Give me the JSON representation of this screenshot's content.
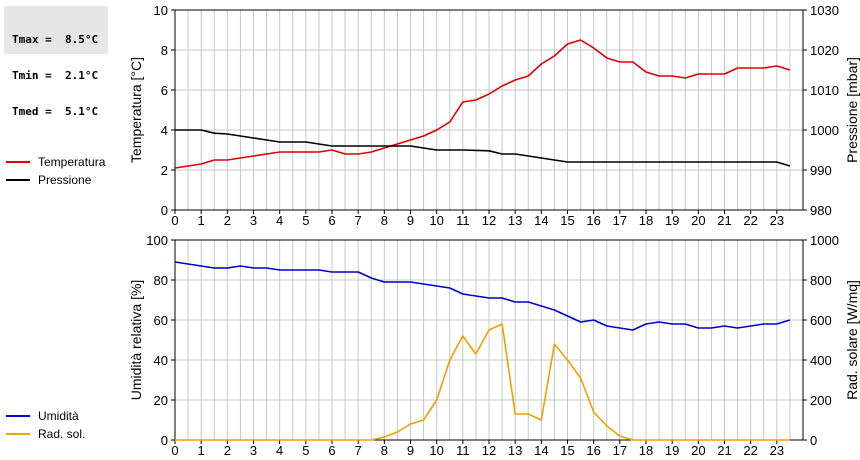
{
  "stats": [
    {
      "label": "Tmax =",
      "value": "8.5°C"
    },
    {
      "label": "Tmin =",
      "value": "2.1°C"
    },
    {
      "label": "Tmed =",
      "value": "5.1°C"
    }
  ],
  "colors": {
    "temperature": "#dd0000",
    "pressure": "#000000",
    "humidity": "#0000cc",
    "radiation": "#f0a000",
    "grid": "#c8c8c8"
  },
  "chart_data": [
    {
      "type": "line",
      "x_ticks": [
        "0",
        "1",
        "2",
        "3",
        "4",
        "5",
        "6",
        "7",
        "8",
        "9",
        "10",
        "11",
        "12",
        "13",
        "14",
        "15",
        "16",
        "17",
        "18",
        "19",
        "20",
        "21",
        "22",
        "23"
      ],
      "xlim": [
        0,
        24
      ],
      "ylabel_left": "Temperatura [°C]",
      "ylabel_right": "Pressione [mbar]",
      "ylim_left": [
        0,
        10
      ],
      "yticks_left": [
        "0",
        "2",
        "4",
        "6",
        "8",
        "10"
      ],
      "ylim_right": [
        980,
        1030
      ],
      "yticks_right": [
        "980",
        "990",
        "1000",
        "1010",
        "1020",
        "1030"
      ],
      "grid": true,
      "legend": [
        "Temperatura",
        "Pressione"
      ],
      "series": [
        {
          "name": "Temperatura",
          "axis": "left",
          "x": [
            0,
            0.5,
            1,
            1.5,
            2,
            2.5,
            3,
            3.5,
            4,
            4.5,
            5,
            5.5,
            6,
            6.5,
            7,
            7.5,
            8,
            8.5,
            9,
            9.5,
            10,
            10.5,
            11,
            11.5,
            12,
            12.5,
            13,
            13.5,
            14,
            14.5,
            15,
            15.5,
            16,
            16.5,
            17,
            17.5,
            18,
            18.5,
            19,
            19.5,
            20,
            20.5,
            21,
            21.5,
            22,
            22.5,
            23,
            23.5
          ],
          "y": [
            2.1,
            2.2,
            2.3,
            2.5,
            2.5,
            2.6,
            2.7,
            2.8,
            2.9,
            2.9,
            2.9,
            2.9,
            3.0,
            2.8,
            2.8,
            2.9,
            3.1,
            3.3,
            3.5,
            3.7,
            4.0,
            4.4,
            5.4,
            5.5,
            5.8,
            6.2,
            6.5,
            6.7,
            7.3,
            7.7,
            8.3,
            8.5,
            8.1,
            7.6,
            7.4,
            7.4,
            6.9,
            6.7,
            6.7,
            6.6,
            6.8,
            6.8,
            6.8,
            7.1,
            7.1,
            7.1,
            7.2,
            7.0
          ]
        },
        {
          "name": "Pressione",
          "axis": "right",
          "x": [
            0,
            1,
            1.5,
            2,
            2.5,
            3,
            3.5,
            4,
            5,
            5.5,
            6,
            7,
            8,
            9,
            9.5,
            10,
            11,
            12,
            12.5,
            13,
            13.5,
            14,
            14.5,
            15,
            16,
            17,
            18,
            19,
            20,
            21,
            22,
            23,
            23.5
          ],
          "y": [
            1000.0,
            1000.0,
            999.2,
            999.0,
            998.5,
            998.0,
            997.5,
            997.0,
            997.0,
            996.5,
            996.0,
            996.0,
            996.0,
            996.0,
            995.5,
            995.0,
            995.0,
            994.8,
            994.0,
            994.0,
            993.5,
            993.0,
            992.5,
            992.0,
            992.0,
            992.0,
            992.0,
            992.0,
            992.0,
            992.0,
            992.0,
            992.0,
            991.0
          ]
        }
      ]
    },
    {
      "type": "line",
      "x_ticks": [
        "0",
        "1",
        "2",
        "3",
        "4",
        "5",
        "6",
        "7",
        "8",
        "9",
        "10",
        "11",
        "12",
        "13",
        "14",
        "15",
        "16",
        "17",
        "18",
        "19",
        "20",
        "21",
        "22",
        "23"
      ],
      "xlim": [
        0,
        24
      ],
      "ylabel_left": "Umidità relativa [%]",
      "ylabel_right": "Rad. solare [W/mq]",
      "ylim_left": [
        0,
        100
      ],
      "yticks_left": [
        "0",
        "20",
        "40",
        "60",
        "80",
        "100"
      ],
      "ylim_right": [
        0,
        1000
      ],
      "yticks_right": [
        "0",
        "200",
        "400",
        "600",
        "800",
        "1000"
      ],
      "grid": true,
      "legend": [
        "Umidità",
        "Rad. sol."
      ],
      "series": [
        {
          "name": "Umidità",
          "axis": "left",
          "x": [
            0,
            0.5,
            1,
            1.5,
            2,
            2.5,
            3,
            3.5,
            4,
            4.5,
            5,
            5.5,
            6,
            6.5,
            7,
            7.5,
            8,
            8.5,
            9,
            9.5,
            10,
            10.5,
            11,
            11.5,
            12,
            12.5,
            13,
            13.5,
            14,
            14.5,
            15,
            15.5,
            16,
            16.5,
            17,
            17.5,
            18,
            18.5,
            19,
            19.5,
            20,
            20.5,
            21,
            21.5,
            22,
            22.5,
            23,
            23.5
          ],
          "y": [
            89,
            88,
            87,
            86,
            86,
            87,
            86,
            86,
            85,
            85,
            85,
            85,
            84,
            84,
            84,
            81,
            79,
            79,
            79,
            78,
            77,
            76,
            73,
            72,
            71,
            71,
            69,
            69,
            67,
            65,
            62,
            59,
            60,
            57,
            56,
            55,
            58,
            59,
            58,
            58,
            56,
            56,
            57,
            56,
            57,
            58,
            58,
            60
          ]
        },
        {
          "name": "Rad. sol.",
          "axis": "right",
          "x": [
            0,
            1,
            2,
            3,
            4,
            5,
            6,
            7,
            7.5,
            8,
            8.5,
            9,
            9.5,
            10,
            10.5,
            11,
            11.5,
            12,
            12.5,
            13,
            13.5,
            14,
            14.5,
            15,
            15.5,
            16,
            16.5,
            17,
            17.5,
            18,
            19,
            20,
            21,
            22,
            23,
            23.5
          ],
          "y": [
            0,
            0,
            0,
            0,
            0,
            0,
            0,
            0,
            0,
            15,
            40,
            80,
            100,
            200,
            400,
            520,
            430,
            550,
            580,
            130,
            130,
            100,
            480,
            400,
            310,
            140,
            70,
            20,
            0,
            0,
            0,
            0,
            0,
            0,
            0,
            0
          ]
        }
      ]
    }
  ]
}
